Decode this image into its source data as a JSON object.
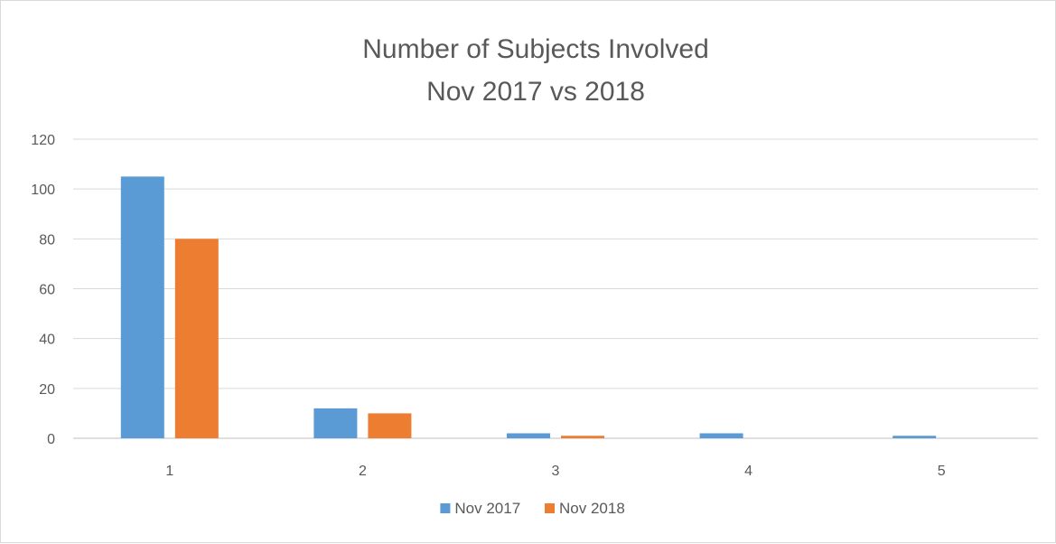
{
  "chart_data": {
    "type": "bar",
    "title_lines": [
      "Number of Subjects Involved",
      "Nov 2017 vs 2018"
    ],
    "categories": [
      "1",
      "2",
      "3",
      "4",
      "5"
    ],
    "series": [
      {
        "name": "Nov 2017",
        "color": "#5b9bd5",
        "values": [
          105,
          12,
          2,
          2,
          1
        ]
      },
      {
        "name": "Nov 2018",
        "color": "#ed7d31",
        "values": [
          80,
          10,
          1,
          0,
          0
        ]
      }
    ],
    "ylim": [
      0,
      120
    ],
    "yticks": [
      0,
      20,
      40,
      60,
      80,
      100,
      120
    ],
    "grid": true,
    "legend_position": "bottom"
  }
}
